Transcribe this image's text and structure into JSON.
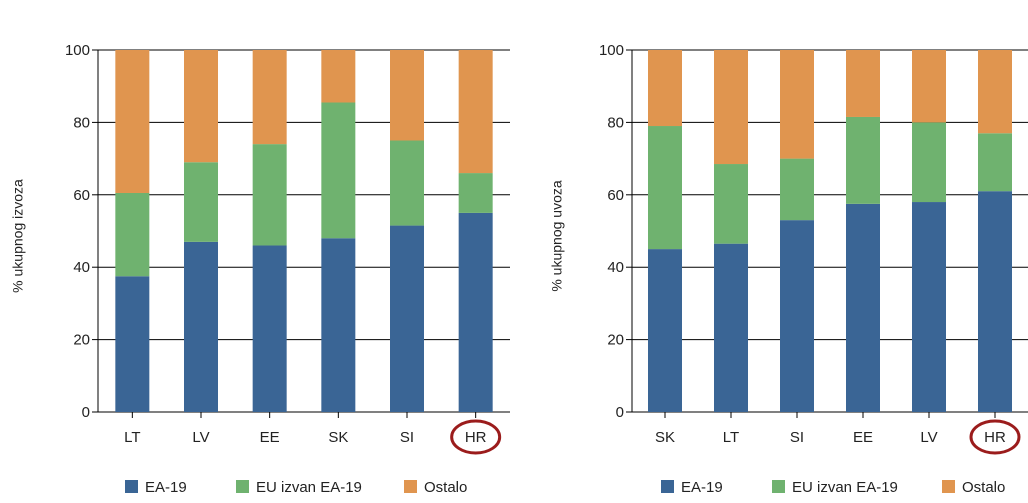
{
  "colors": {
    "ea19": "#3a6595",
    "eu_outside": "#6fb26f",
    "other": "#e0954f",
    "highlight_circle": "#9b1c1c",
    "axis": "#000000"
  },
  "legend": [
    "EA-19",
    "EU izvan EA-19",
    "Ostalo"
  ],
  "chart_data": [
    {
      "type": "bar",
      "stacked": true,
      "ylabel": "% ukupnog izvoza",
      "ylim": [
        0,
        100
      ],
      "yticks": [
        "0",
        "20",
        "40",
        "60",
        "80",
        "100"
      ],
      "categories": [
        "LT",
        "LV",
        "EE",
        "SK",
        "SI",
        "HR"
      ],
      "highlighted_category": "HR",
      "grid": true,
      "series": [
        {
          "name": "EA-19",
          "values": [
            37.5,
            47,
            46,
            48,
            51.5,
            55
          ]
        },
        {
          "name": "EU izvan EA-19",
          "values": [
            23,
            22,
            28,
            37.5,
            23.5,
            11
          ]
        },
        {
          "name": "Ostalo",
          "values": [
            39.5,
            31,
            26,
            14.5,
            25,
            34
          ]
        }
      ]
    },
    {
      "type": "bar",
      "stacked": true,
      "ylabel": "% ukupnog uvoza",
      "ylim": [
        0,
        100
      ],
      "yticks": [
        "0",
        "20",
        "40",
        "60",
        "80",
        "100"
      ],
      "categories": [
        "SK",
        "LT",
        "SI",
        "EE",
        "LV",
        "HR"
      ],
      "highlighted_category": "HR",
      "grid": true,
      "series": [
        {
          "name": "EA-19",
          "values": [
            45,
            46.5,
            53,
            57.5,
            58,
            61
          ]
        },
        {
          "name": "EU izvan EA-19",
          "values": [
            34,
            22,
            17,
            24,
            22,
            16
          ]
        },
        {
          "name": "Ostalo",
          "values": [
            21,
            31.5,
            30,
            18.5,
            20,
            23
          ]
        }
      ]
    }
  ]
}
